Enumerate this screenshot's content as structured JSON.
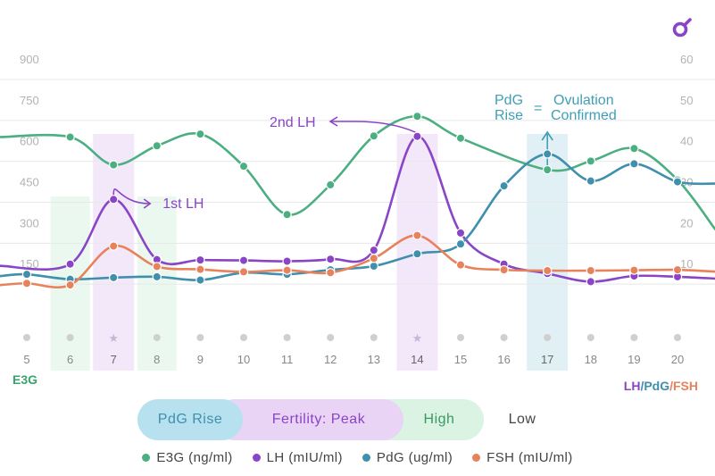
{
  "chart_data": {
    "type": "line",
    "x": [
      5,
      6,
      7,
      8,
      9,
      10,
      11,
      12,
      13,
      14,
      15,
      16,
      17,
      18,
      19,
      20
    ],
    "highlight_days": [
      7,
      14,
      17
    ],
    "left_axis": {
      "label": "E3G",
      "ticks": [
        150,
        300,
        450,
        600,
        750,
        900
      ],
      "range": [
        0,
        900
      ]
    },
    "right_axis": {
      "label": "LH/PdG/FSH",
      "ticks": [
        10,
        20,
        30,
        40,
        50,
        60
      ],
      "range": [
        0,
        60
      ]
    },
    "series": [
      {
        "name": "E3G (ng/ml)",
        "axis": "left",
        "color": "#4caf82",
        "values": [
          null,
          617,
          515,
          585,
          628,
          510,
          333,
          442,
          621,
          693,
          613,
          null,
          497,
          529,
          575,
          460
        ]
      },
      {
        "name": "LH (mIU/ml)",
        "axis": "right",
        "color": "#8a45c6",
        "values": [
          null,
          10.1,
          25.9,
          11.2,
          11.1,
          11.0,
          10.8,
          11.3,
          13.5,
          41.3,
          17.7,
          10.1,
          7.8,
          5.8,
          7.2,
          7.0
        ]
      },
      {
        "name": "PdG (ug/ml)",
        "axis": "right",
        "color": "#3f8fad",
        "values": [
          7.6,
          6.4,
          6.8,
          7.0,
          6.2,
          8.0,
          7.6,
          8.7,
          9.6,
          12.6,
          15.0,
          29.2,
          37.0,
          30.4,
          34.6,
          30.2
        ]
      },
      {
        "name": "FSH (mIU/ml)",
        "axis": "right",
        "color": "#e8825c",
        "values": [
          5.4,
          5.0,
          14.5,
          9.5,
          8.8,
          8.2,
          8.6,
          8.0,
          11.5,
          17.1,
          9.9,
          8.7,
          8.5,
          8.5,
          8.6,
          8.7
        ]
      }
    ],
    "annotations": {
      "first_lh": "1st LH",
      "second_lh": "2nd LH",
      "pdg_rise_line1": "PdG",
      "pdg_rise_line2": "Rise",
      "equals": "=",
      "ovulation_line1": "Ovulation",
      "ovulation_line2": "Confirmed"
    },
    "grid": true,
    "legend_position": "bottom"
  },
  "phases": [
    {
      "label": "PdG Rise",
      "color": "#b7e1ee"
    },
    {
      "label": "Fertility: Peak",
      "color": "#ead4f6"
    },
    {
      "label": "High",
      "color": "#daf3e2"
    },
    {
      "label": "Low",
      "color": "#ffffff"
    }
  ],
  "legend": [
    {
      "label": "E3G (ng/ml)",
      "color": "#4caf82"
    },
    {
      "label": "LH (mIU/ml)",
      "color": "#8a45c6"
    },
    {
      "label": "PdG (ug/ml)",
      "color": "#3f8fad"
    },
    {
      "label": "FSH (mIU/ml)",
      "color": "#e8825c"
    }
  ],
  "axis_labels": {
    "left": "E3G",
    "right_lh": "LH",
    "sep1": "/",
    "right_pdg": "PdG",
    "sep2": "/",
    "right_fsh": "FSH"
  },
  "logo_icon": "brand-logo-icon"
}
